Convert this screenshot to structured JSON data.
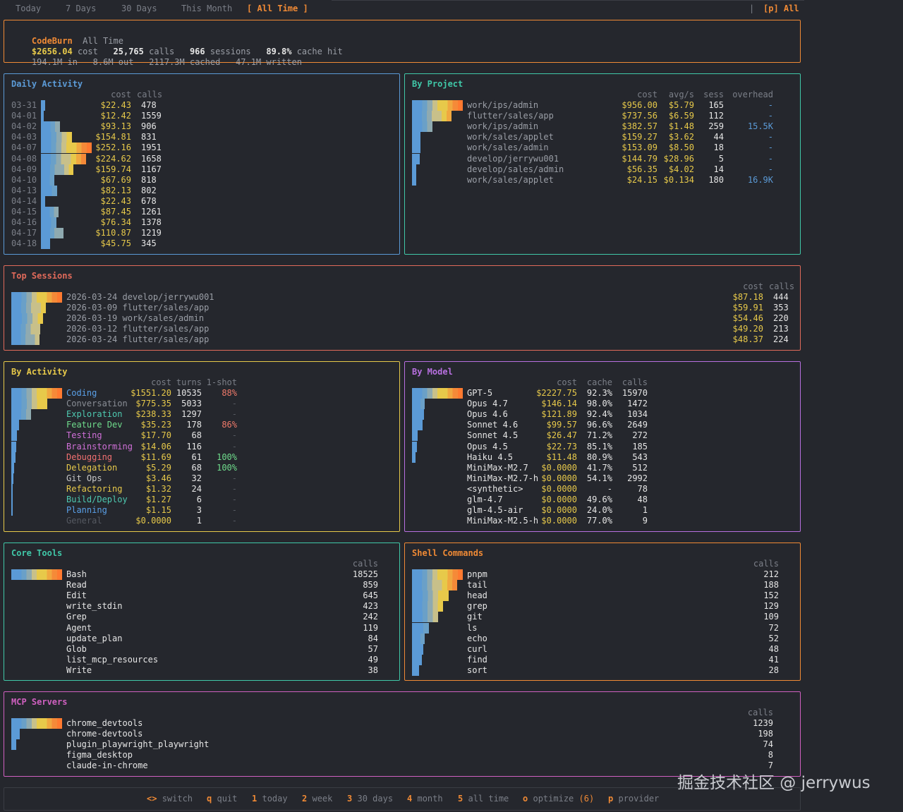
{
  "tabs": {
    "today": "Today",
    "days7": "7 Days",
    "days30": "30 Days",
    "month": "This Month",
    "all": "[ All Time ]",
    "sep": "|",
    "provider": "[p] All"
  },
  "summary": {
    "app": "CodeBurn",
    "period": "All Time",
    "cost": "$2656.04",
    "cost_label": "cost",
    "calls": "25,765",
    "calls_label": "calls",
    "sessions": "966",
    "sessions_label": "sessions",
    "cache": "89.8%",
    "cache_label": "cache hit",
    "tin": "194.1M",
    "tin_label": "in",
    "tout": "8.6M",
    "tout_label": "out",
    "tcached": "2117.3M",
    "tcached_label": "cached",
    "twritten": "47.1M",
    "twritten_label": "written"
  },
  "daily": {
    "title": "Daily Activity",
    "headers": {
      "cost": "cost",
      "calls": "calls"
    },
    "rows": [
      {
        "date": "03-31",
        "cost": "$22.43",
        "calls": "478",
        "v": 22.43
      },
      {
        "date": "04-01",
        "cost": "$12.42",
        "calls": "1559",
        "v": 12.42
      },
      {
        "date": "04-02",
        "cost": "$93.13",
        "calls": "906",
        "v": 93.13
      },
      {
        "date": "04-03",
        "cost": "$154.81",
        "calls": "831",
        "v": 154.81
      },
      {
        "date": "04-07",
        "cost": "$252.16",
        "calls": "1951",
        "v": 252.16
      },
      {
        "date": "04-08",
        "cost": "$224.62",
        "calls": "1658",
        "v": 224.62
      },
      {
        "date": "04-09",
        "cost": "$159.74",
        "calls": "1167",
        "v": 159.74
      },
      {
        "date": "04-10",
        "cost": "$67.69",
        "calls": "818",
        "v": 67.69
      },
      {
        "date": "04-13",
        "cost": "$82.13",
        "calls": "802",
        "v": 82.13
      },
      {
        "date": "04-14",
        "cost": "$22.43",
        "calls": "678",
        "v": 22.43
      },
      {
        "date": "04-15",
        "cost": "$87.45",
        "calls": "1261",
        "v": 87.45
      },
      {
        "date": "04-16",
        "cost": "$76.34",
        "calls": "1378",
        "v": 76.34
      },
      {
        "date": "04-17",
        "cost": "$110.87",
        "calls": "1219",
        "v": 110.87
      },
      {
        "date": "04-18",
        "cost": "$45.75",
        "calls": "345",
        "v": 45.75
      }
    ]
  },
  "project": {
    "title": "By Project",
    "headers": {
      "cost": "cost",
      "avg": "avg/s",
      "sess": "sess",
      "overhead": "overhead"
    },
    "rows": [
      {
        "name": "work/ips/admin",
        "cost": "$956.00",
        "avg": "$5.79",
        "sess": "165",
        "overhead": "-",
        "v": 956.0
      },
      {
        "name": "flutter/sales/app",
        "cost": "$737.56",
        "avg": "$6.59",
        "sess": "112",
        "overhead": "-",
        "v": 737.56
      },
      {
        "name": "work/ips/admin",
        "cost": "$382.57",
        "avg": "$1.48",
        "sess": "259",
        "overhead": "15.5K",
        "v": 382.57
      },
      {
        "name": "work/sales/applet",
        "cost": "$159.27",
        "avg": "$3.62",
        "sess": "44",
        "overhead": "-",
        "v": 159.27
      },
      {
        "name": "work/sales/admin",
        "cost": "$153.09",
        "avg": "$8.50",
        "sess": "18",
        "overhead": "-",
        "v": 153.09
      },
      {
        "name": "develop/jerrywu001",
        "cost": "$144.79",
        "avg": "$28.96",
        "sess": "5",
        "overhead": "-",
        "v": 144.79
      },
      {
        "name": "develop/sales/admin",
        "cost": "$56.35",
        "avg": "$4.02",
        "sess": "14",
        "overhead": "-",
        "v": 56.35
      },
      {
        "name": "work/sales/applet",
        "cost": "$24.15",
        "avg": "$0.134",
        "sess": "180",
        "overhead": "16.9K",
        "v": 24.15
      }
    ]
  },
  "sessions": {
    "title": "Top Sessions",
    "headers": {
      "cost": "cost",
      "calls": "calls"
    },
    "rows": [
      {
        "label": "2026-03-24 develop/jerrywu001",
        "cost": "$87.18",
        "calls": "444",
        "v": 87.18
      },
      {
        "label": "2026-03-09 flutter/sales/app",
        "cost": "$59.91",
        "calls": "353",
        "v": 59.91
      },
      {
        "label": "2026-03-19 work/sales/admin",
        "cost": "$54.46",
        "calls": "220",
        "v": 54.46
      },
      {
        "label": "2026-03-12 flutter/sales/app",
        "cost": "$49.20",
        "calls": "213",
        "v": 49.2
      },
      {
        "label": "2026-03-24 flutter/sales/app",
        "cost": "$48.37",
        "calls": "224",
        "v": 48.37
      }
    ]
  },
  "activity": {
    "title": "By Activity",
    "headers": {
      "cost": "cost",
      "turns": "turns",
      "oneshot": "1-shot"
    },
    "rows": [
      {
        "name": "Coding",
        "color": "#5aa0e8",
        "cost": "$1551.20",
        "turns": "10535",
        "oneshot": "88%",
        "oscolor": "#f07a6a",
        "v": 1551.2
      },
      {
        "name": "Conversation",
        "color": "#8a8e96",
        "cost": "$775.35",
        "turns": "5033",
        "oneshot": "-",
        "oscolor": "#555961",
        "v": 775.35
      },
      {
        "name": "Exploration",
        "color": "#4ec9b0",
        "cost": "$238.33",
        "turns": "1297",
        "oneshot": "-",
        "oscolor": "#555961",
        "v": 238.33
      },
      {
        "name": "Feature Dev",
        "color": "#6fdc8c",
        "cost": "$35.23",
        "turns": "178",
        "oneshot": "86%",
        "oscolor": "#f07a6a",
        "v": 35.23
      },
      {
        "name": "Testing",
        "color": "#d070d8",
        "cost": "$17.70",
        "turns": "68",
        "oneshot": "-",
        "oscolor": "#555961",
        "v": 17.7
      },
      {
        "name": "Brainstorming",
        "color": "#d070d8",
        "cost": "$14.06",
        "turns": "116",
        "oneshot": "-",
        "oscolor": "#555961",
        "v": 14.06
      },
      {
        "name": "Debugging",
        "color": "#f07070",
        "cost": "$11.69",
        "turns": "61",
        "oneshot": "100%",
        "oscolor": "#6fdc8c",
        "v": 11.69
      },
      {
        "name": "Delegation",
        "color": "#e7c94a",
        "cost": "$5.29",
        "turns": "68",
        "oneshot": "100%",
        "oscolor": "#6fdc8c",
        "v": 5.29
      },
      {
        "name": "Git Ops",
        "color": "#c8c8c8",
        "cost": "$3.46",
        "turns": "32",
        "oneshot": "-",
        "oscolor": "#555961",
        "v": 3.46
      },
      {
        "name": "Refactoring",
        "color": "#e7c94a",
        "cost": "$1.32",
        "turns": "24",
        "oneshot": "-",
        "oscolor": "#555961",
        "v": 1.32
      },
      {
        "name": "Build/Deploy",
        "color": "#4ec9b0",
        "cost": "$1.27",
        "turns": "6",
        "oneshot": "-",
        "oscolor": "#555961",
        "v": 1.27
      },
      {
        "name": "Planning",
        "color": "#5aa0e8",
        "cost": "$1.15",
        "turns": "3",
        "oneshot": "-",
        "oscolor": "#555961",
        "v": 1.15
      },
      {
        "name": "General",
        "color": "#555961",
        "cost": "$0.0000",
        "turns": "1",
        "oneshot": "-",
        "oscolor": "#555961",
        "v": 0
      }
    ]
  },
  "model": {
    "title": "By Model",
    "headers": {
      "cost": "cost",
      "cache": "cache",
      "calls": "calls"
    },
    "rows": [
      {
        "name": "GPT-5",
        "cost": "$2227.75",
        "cache": "92.3%",
        "calls": "15970",
        "v": 2227.75
      },
      {
        "name": "Opus 4.7",
        "cost": "$146.14",
        "cache": "98.0%",
        "calls": "1472",
        "v": 146.14
      },
      {
        "name": "Opus 4.6",
        "cost": "$121.89",
        "cache": "92.4%",
        "calls": "1034",
        "v": 121.89
      },
      {
        "name": "Sonnet 4.6",
        "cost": "$99.57",
        "cache": "96.6%",
        "calls": "2649",
        "v": 99.57
      },
      {
        "name": "Sonnet 4.5",
        "cost": "$26.47",
        "cache": "71.2%",
        "calls": "272",
        "v": 26.47
      },
      {
        "name": "Opus 4.5",
        "cost": "$22.73",
        "cache": "85.1%",
        "calls": "185",
        "v": 22.73
      },
      {
        "name": "Haiku 4.5",
        "cost": "$11.48",
        "cache": "80.9%",
        "calls": "543",
        "v": 11.48
      },
      {
        "name": "MiniMax-M2.7",
        "cost": "$0.0000",
        "cache": "41.7%",
        "calls": "512",
        "v": 0
      },
      {
        "name": "MiniMax-M2.7-h",
        "cost": "$0.0000",
        "cache": "54.1%",
        "calls": "2992",
        "v": 0
      },
      {
        "name": "<synthetic>",
        "cost": "$0.0000",
        "cache": "-",
        "calls": "78",
        "v": 0
      },
      {
        "name": "glm-4.7",
        "cost": "$0.0000",
        "cache": "49.6%",
        "calls": "48",
        "v": 0
      },
      {
        "name": "glm-4.5-air",
        "cost": "$0.0000",
        "cache": "24.0%",
        "calls": "1",
        "v": 0
      },
      {
        "name": "MiniMax-M2.5-h",
        "cost": "$0.0000",
        "cache": "77.0%",
        "calls": "9",
        "v": 0
      }
    ]
  },
  "tools": {
    "title": "Core Tools",
    "headers": {
      "calls": "calls"
    },
    "rows": [
      {
        "name": "Bash",
        "calls": "18525",
        "v": 18525
      },
      {
        "name": "Read",
        "calls": "859",
        "v": 859
      },
      {
        "name": "Edit",
        "calls": "645",
        "v": 645
      },
      {
        "name": "write_stdin",
        "calls": "423",
        "v": 423
      },
      {
        "name": "Grep",
        "calls": "242",
        "v": 242
      },
      {
        "name": "Agent",
        "calls": "119",
        "v": 119
      },
      {
        "name": "update_plan",
        "calls": "84",
        "v": 84
      },
      {
        "name": "Glob",
        "calls": "57",
        "v": 57
      },
      {
        "name": "list_mcp_resources",
        "calls": "49",
        "v": 49
      },
      {
        "name": "Write",
        "calls": "38",
        "v": 38
      }
    ]
  },
  "shell": {
    "title": "Shell Commands",
    "headers": {
      "calls": "calls"
    },
    "rows": [
      {
        "name": "pnpm",
        "calls": "212",
        "v": 212
      },
      {
        "name": "tail",
        "calls": "188",
        "v": 188
      },
      {
        "name": "head",
        "calls": "152",
        "v": 152
      },
      {
        "name": "grep",
        "calls": "129",
        "v": 129
      },
      {
        "name": "git",
        "calls": "109",
        "v": 109
      },
      {
        "name": "ls",
        "calls": "72",
        "v": 72
      },
      {
        "name": "echo",
        "calls": "52",
        "v": 52
      },
      {
        "name": "curl",
        "calls": "48",
        "v": 48
      },
      {
        "name": "find",
        "calls": "41",
        "v": 41
      },
      {
        "name": "sort",
        "calls": "28",
        "v": 28
      }
    ]
  },
  "mcp": {
    "title": "MCP Servers",
    "headers": {
      "calls": "calls"
    },
    "rows": [
      {
        "name": "chrome_devtools",
        "calls": "1239",
        "v": 1239
      },
      {
        "name": "chrome-devtools",
        "calls": "198",
        "v": 198
      },
      {
        "name": "plugin_playwright_playwright",
        "calls": "74",
        "v": 74
      },
      {
        "name": "figma_desktop",
        "calls": "8",
        "v": 8
      },
      {
        "name": "claude-in-chrome",
        "calls": "7",
        "v": 7
      }
    ]
  },
  "footer": [
    {
      "key": "<>",
      "label": "switch"
    },
    {
      "key": "q",
      "label": "quit"
    },
    {
      "key": "1",
      "label": "today"
    },
    {
      "key": "2",
      "label": "week"
    },
    {
      "key": "3",
      "label": "30 days"
    },
    {
      "key": "4",
      "label": "month"
    },
    {
      "key": "5",
      "label": "all time"
    },
    {
      "key": "o",
      "label": "optimize",
      "extra": "(6)"
    },
    {
      "key": "p",
      "label": "provider"
    }
  ],
  "watermark": "掘金技术社区 @ jerrywus",
  "colors": {
    "orange": "#f08a35",
    "yellow": "#e7c94a",
    "blue": "#5b9ad6",
    "teal": "#40c8a8",
    "purple": "#b870e0",
    "coral": "#e06a5a",
    "pink": "#d060c0"
  }
}
